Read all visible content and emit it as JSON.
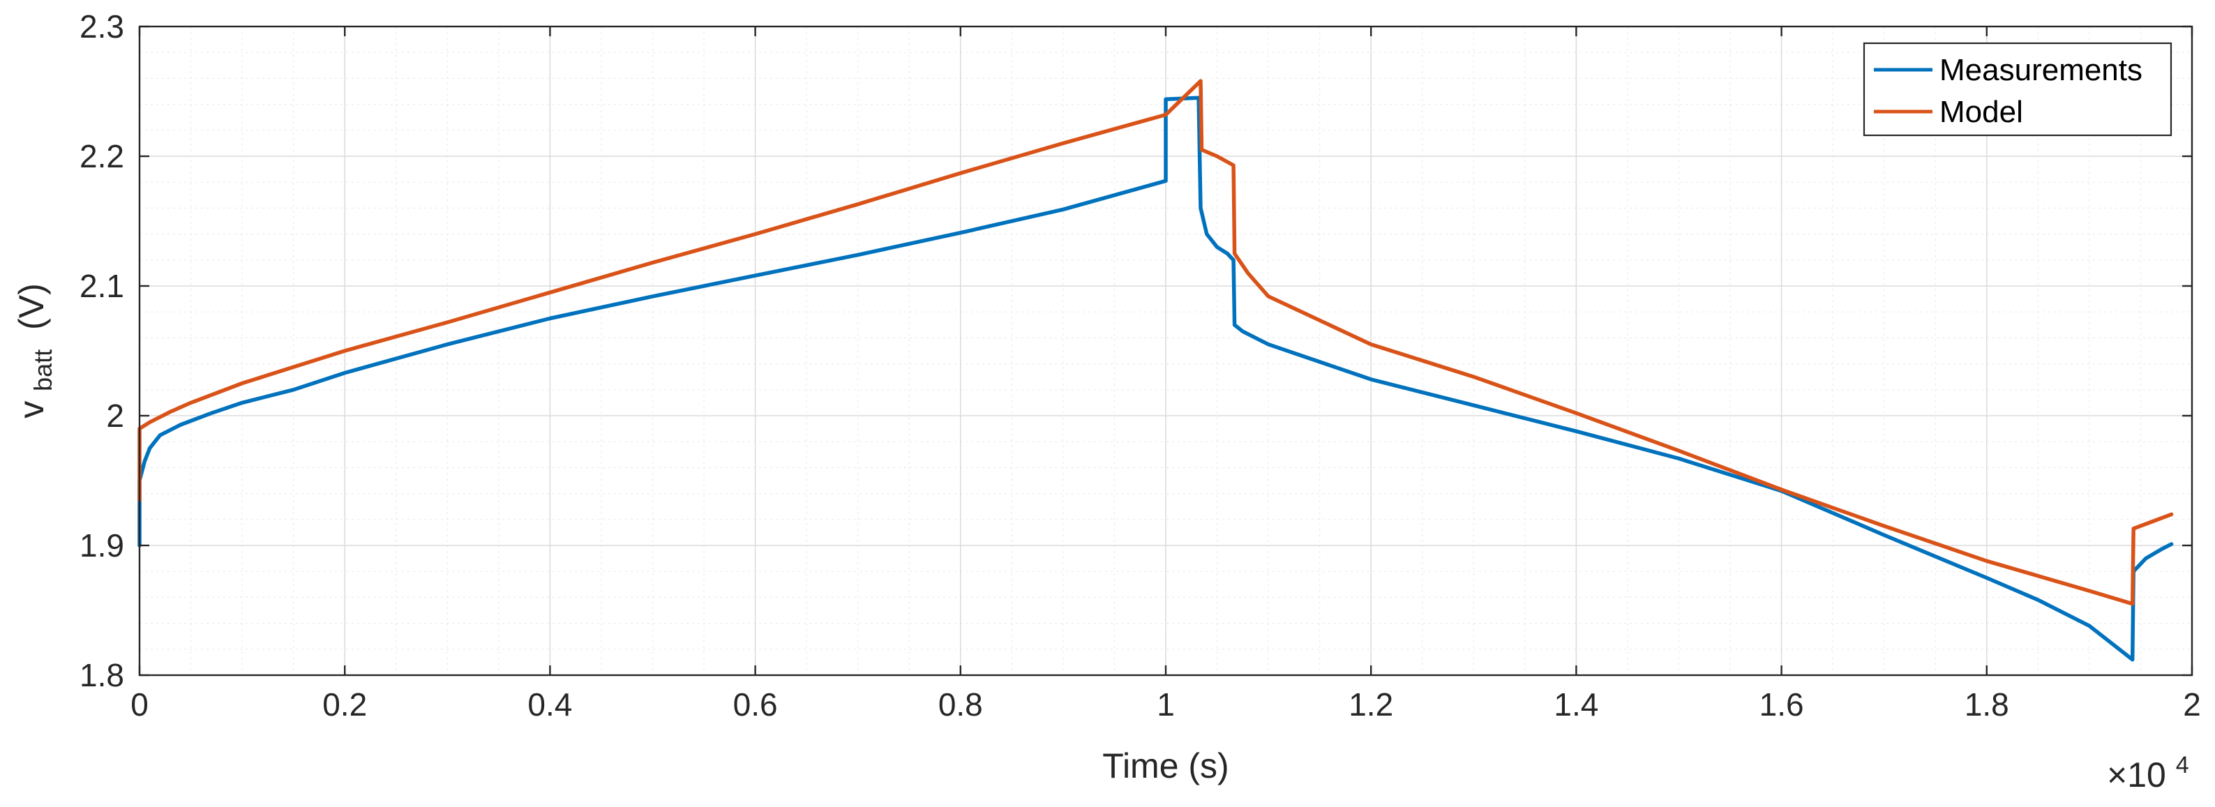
{
  "chart_data": {
    "type": "line",
    "xlabel": "Time (s)",
    "ylabel_main": "v",
    "ylabel_sub": "batt",
    "ylabel_unit": "(V)",
    "x_multiplier_label": "×10",
    "x_multiplier_exp": "4",
    "xlim": [
      0,
      2
    ],
    "ylim": [
      1.8,
      2.3
    ],
    "grid": true,
    "minor_grid": true,
    "legend_position": "top-right",
    "x_ticks": [
      "0",
      "0.2",
      "0.4",
      "0.6",
      "0.8",
      "1",
      "1.2",
      "1.4",
      "1.6",
      "1.8",
      "2"
    ],
    "y_ticks": [
      "1.8",
      "1.9",
      "2",
      "2.1",
      "2.2",
      "2.3"
    ],
    "series": [
      {
        "name": "Measurements",
        "color": "#0072BD",
        "points": [
          [
            0,
            1.9
          ],
          [
            0,
            1.95
          ],
          [
            0.005,
            1.965
          ],
          [
            0.01,
            1.975
          ],
          [
            0.02,
            1.985
          ],
          [
            0.04,
            1.993
          ],
          [
            0.07,
            2.002
          ],
          [
            0.1,
            2.01
          ],
          [
            0.15,
            2.02
          ],
          [
            0.2,
            2.033
          ],
          [
            0.3,
            2.055
          ],
          [
            0.4,
            2.075
          ],
          [
            0.5,
            2.092
          ],
          [
            0.6,
            2.108
          ],
          [
            0.7,
            2.124
          ],
          [
            0.8,
            2.141
          ],
          [
            0.9,
            2.159
          ],
          [
            1.0,
            2.181
          ],
          [
            1.0,
            2.208
          ],
          [
            1.0,
            2.244
          ],
          [
            1.032,
            2.245
          ],
          [
            1.034,
            2.16
          ],
          [
            1.04,
            2.14
          ],
          [
            1.05,
            2.13
          ],
          [
            1.06,
            2.125
          ],
          [
            1.066,
            2.12
          ],
          [
            1.067,
            2.07
          ],
          [
            1.075,
            2.065
          ],
          [
            1.09,
            2.059
          ],
          [
            1.1,
            2.055
          ],
          [
            1.2,
            2.028
          ],
          [
            1.3,
            2.008
          ],
          [
            1.4,
            1.988
          ],
          [
            1.5,
            1.967
          ],
          [
            1.6,
            1.942
          ],
          [
            1.7,
            1.908
          ],
          [
            1.8,
            1.875
          ],
          [
            1.85,
            1.858
          ],
          [
            1.9,
            1.838
          ],
          [
            1.942,
            1.812
          ],
          [
            1.943,
            1.88
          ],
          [
            1.955,
            1.89
          ],
          [
            1.97,
            1.897
          ],
          [
            1.98,
            1.901
          ]
        ]
      },
      {
        "name": "Model",
        "color": "#D95319",
        "points": [
          [
            0,
            1.935
          ],
          [
            0,
            1.99
          ],
          [
            0.01,
            1.995
          ],
          [
            0.03,
            2.003
          ],
          [
            0.05,
            2.01
          ],
          [
            0.1,
            2.025
          ],
          [
            0.2,
            2.05
          ],
          [
            0.3,
            2.072
          ],
          [
            0.4,
            2.095
          ],
          [
            0.5,
            2.118
          ],
          [
            0.6,
            2.14
          ],
          [
            0.7,
            2.163
          ],
          [
            0.8,
            2.187
          ],
          [
            0.9,
            2.21
          ],
          [
            1.0,
            2.232
          ],
          [
            1.034,
            2.258
          ],
          [
            1.035,
            2.205
          ],
          [
            1.05,
            2.2
          ],
          [
            1.066,
            2.193
          ],
          [
            1.067,
            2.125
          ],
          [
            1.08,
            2.11
          ],
          [
            1.1,
            2.092
          ],
          [
            1.2,
            2.055
          ],
          [
            1.3,
            2.03
          ],
          [
            1.4,
            2.002
          ],
          [
            1.5,
            1.973
          ],
          [
            1.6,
            1.943
          ],
          [
            1.7,
            1.915
          ],
          [
            1.8,
            1.888
          ],
          [
            1.9,
            1.865
          ],
          [
            1.942,
            1.855
          ],
          [
            1.943,
            1.913
          ],
          [
            1.96,
            1.918
          ],
          [
            1.98,
            1.924
          ]
        ]
      }
    ]
  }
}
